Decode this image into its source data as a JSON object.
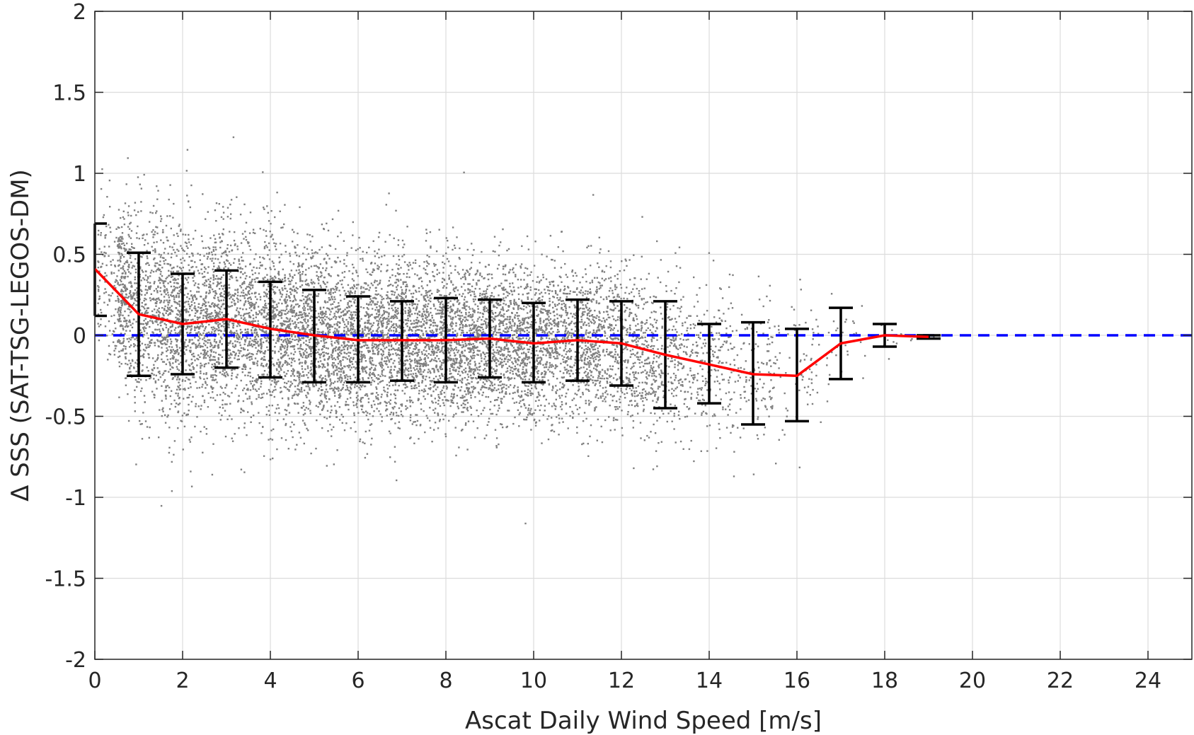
{
  "chart_data": {
    "type": "scatter",
    "title": "",
    "xlabel": "Ascat Daily Wind Speed [m/s]",
    "ylabel": "Δ SSS (SAT-TSG-LEGOS-DM)",
    "xlim": [
      0,
      25
    ],
    "ylim": [
      -2,
      2
    ],
    "x_ticks": [
      0,
      2,
      4,
      6,
      8,
      10,
      12,
      14,
      16,
      18,
      20,
      22,
      24
    ],
    "y_ticks": [
      -2,
      -1.5,
      -1,
      -0.5,
      0,
      0.5,
      1,
      1.5,
      2
    ],
    "x_tick_labels": [
      "0",
      "2",
      "4",
      "6",
      "8",
      "10",
      "12",
      "14",
      "16",
      "18",
      "20",
      "22",
      "24"
    ],
    "y_tick_labels": [
      "-2",
      "-1.5",
      "-1",
      "-0.5",
      "0",
      "0.5",
      "1",
      "1.5",
      "2"
    ],
    "grid": true,
    "scatter_envelope": {
      "x": [
        0.2,
        1,
        2,
        3,
        4,
        5,
        6,
        7,
        8,
        9,
        10,
        11,
        12,
        13,
        14,
        15,
        16,
        17,
        18,
        19
      ],
      "mean": [
        0.4,
        0.13,
        0.07,
        0.1,
        0.04,
        0.0,
        -0.03,
        -0.03,
        -0.03,
        -0.02,
        -0.05,
        -0.03,
        -0.05,
        -0.12,
        -0.18,
        -0.24,
        -0.25,
        -0.05,
        0.0,
        -0.01
      ],
      "spread": [
        0.33,
        0.45,
        0.42,
        0.42,
        0.4,
        0.38,
        0.36,
        0.35,
        0.34,
        0.33,
        0.32,
        0.33,
        0.33,
        0.36,
        0.3,
        0.3,
        0.3,
        0.18,
        0.08,
        0.02
      ],
      "counts": [
        250,
        700,
        800,
        800,
        850,
        850,
        850,
        850,
        850,
        800,
        750,
        650,
        500,
        350,
        220,
        140,
        70,
        30,
        10,
        4
      ],
      "color": "#808080"
    },
    "series": [
      {
        "type": "line",
        "color": "#ff0000",
        "x": [
          0,
          1,
          2,
          3,
          4,
          5,
          6,
          7,
          8,
          9,
          10,
          11,
          12,
          13,
          14,
          15,
          16,
          17,
          18,
          19
        ],
        "values": [
          0.41,
          0.13,
          0.07,
          0.1,
          0.04,
          0.0,
          -0.03,
          -0.03,
          -0.03,
          -0.02,
          -0.05,
          -0.03,
          -0.05,
          -0.12,
          -0.18,
          -0.24,
          -0.25,
          -0.05,
          0.0,
          -0.01
        ]
      },
      {
        "type": "errorbar",
        "color": "#000000",
        "x": [
          0,
          1,
          2,
          3,
          4,
          5,
          6,
          7,
          8,
          9,
          10,
          11,
          12,
          13,
          14,
          15,
          16,
          17,
          18,
          19
        ],
        "lower": [
          0.12,
          -0.25,
          -0.24,
          -0.2,
          -0.26,
          -0.29,
          -0.29,
          -0.28,
          -0.29,
          -0.26,
          -0.29,
          -0.28,
          -0.31,
          -0.45,
          -0.42,
          -0.55,
          -0.53,
          -0.27,
          -0.07,
          -0.02
        ],
        "upper": [
          0.69,
          0.51,
          0.38,
          0.4,
          0.33,
          0.28,
          0.24,
          0.21,
          0.23,
          0.22,
          0.2,
          0.22,
          0.21,
          0.21,
          0.07,
          0.08,
          0.04,
          0.17,
          0.07,
          0.0
        ]
      },
      {
        "type": "reference_line",
        "color": "#0000ff",
        "style": "dashed",
        "y": 0
      }
    ]
  }
}
